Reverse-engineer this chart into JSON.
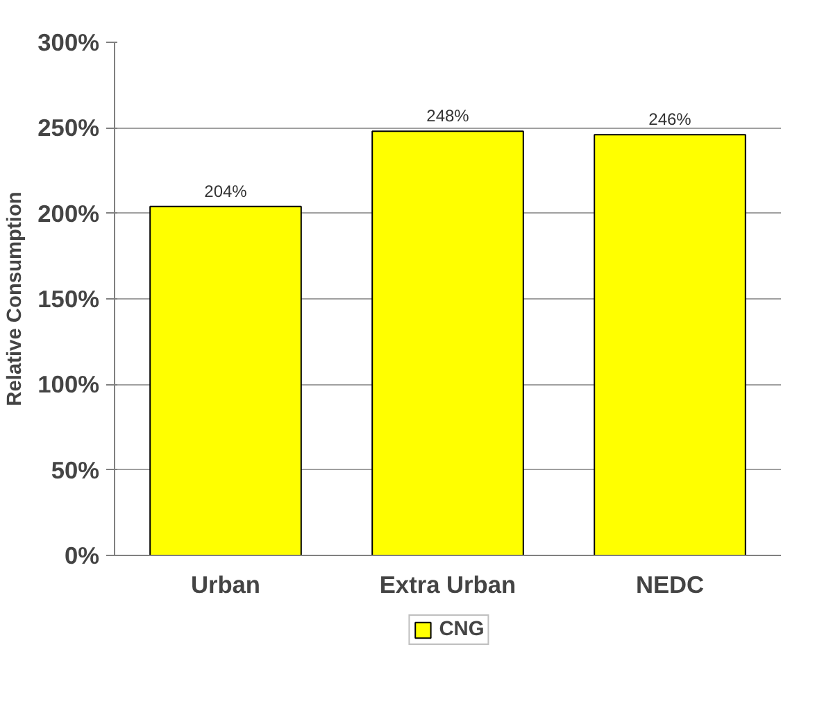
{
  "chart_data": {
    "type": "bar",
    "ylabel": "Relative Consumption",
    "categories": [
      "Urban",
      "Extra Urban",
      "NEDC"
    ],
    "series": [
      {
        "name": "CNG",
        "color": "#ffff00",
        "values": [
          204,
          248,
          246
        ],
        "value_labels": [
          "204%",
          "248%",
          "246%"
        ]
      }
    ],
    "ylim": [
      0,
      300
    ],
    "yticks": [
      {
        "value": 0,
        "label": "0%"
      },
      {
        "value": 50,
        "label": "50%"
      },
      {
        "value": 100,
        "label": "100%"
      },
      {
        "value": 150,
        "label": "150%"
      },
      {
        "value": 200,
        "label": "200%"
      },
      {
        "value": 250,
        "label": "250%"
      },
      {
        "value": 300,
        "label": "300%"
      }
    ],
    "grid": "y",
    "legend": "bottom"
  }
}
